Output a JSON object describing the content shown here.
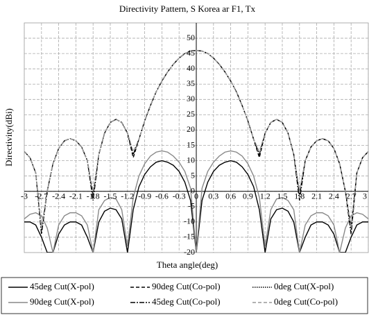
{
  "chart_data": {
    "type": "line",
    "title": "Directivity Pattern, S Korea ar F1, Tx",
    "x_label": "Theta angle(deg)",
    "y_label": "Directivity(dBi)",
    "x": [
      -3,
      -2.9,
      -2.8,
      -2.7,
      -2.6,
      -2.5,
      -2.4,
      -2.3,
      -2.2,
      -2.1,
      -2,
      -1.9,
      -1.8,
      -1.7,
      -1.6,
      -1.5,
      -1.4,
      -1.3,
      -1.2,
      -1.1,
      -1,
      -0.9,
      -0.8,
      -0.7,
      -0.6,
      -0.5,
      -0.4,
      -0.3,
      -0.2,
      -0.1,
      0,
      0.1,
      0.2,
      0.3,
      0.4,
      0.5,
      0.6,
      0.7,
      0.8,
      0.9,
      1,
      1.1,
      1.2,
      1.3,
      1.4,
      1.5,
      1.6,
      1.7,
      1.8,
      1.9,
      2,
      2.1,
      2.2,
      2.3,
      2.4,
      2.5,
      2.6,
      2.7,
      2.8,
      2.9,
      3
    ],
    "series": [
      {
        "name": "45deg Cut(X-pol)",
        "color": "#000000",
        "dash": "solid",
        "values": [
          -10,
          -10,
          -11,
          -15,
          -20,
          -20,
          -14,
          -11,
          -10,
          -10,
          -11,
          -15,
          -20,
          -10,
          -6.5,
          -5.5,
          -6,
          -9,
          -20,
          -6,
          1.5,
          5.5,
          8,
          9.5,
          10,
          9.5,
          8.5,
          6.5,
          3,
          -3,
          -20,
          -3,
          3,
          6.5,
          8.5,
          9.5,
          10,
          9.5,
          8,
          5.5,
          1.5,
          -6,
          -20,
          -9,
          -6,
          -5.5,
          -6.5,
          -10,
          -20,
          -15,
          -11,
          -10,
          -10,
          -11,
          -14,
          -20,
          -20,
          -15,
          -11,
          -10,
          -10
        ]
      },
      {
        "name": "90deg Cut(Co-pol)",
        "color": "#000000",
        "dash": "dashed",
        "values": [
          13,
          11,
          6,
          -12,
          0,
          9,
          14,
          16.5,
          17.2,
          16.5,
          14.5,
          10,
          -1,
          12,
          19,
          22.5,
          23.5,
          22.5,
          19,
          11,
          17,
          23,
          28,
          32.5,
          36,
          39,
          41.5,
          43.5,
          45,
          45.8,
          46,
          45.8,
          45,
          43.5,
          41.5,
          39,
          36,
          32.5,
          28,
          23,
          17,
          11,
          19,
          22.5,
          23.5,
          22.5,
          19,
          12,
          -1,
          10,
          14.5,
          16.5,
          17.2,
          16.5,
          14,
          9,
          0,
          -12,
          6,
          11,
          13
        ]
      },
      {
        "name": "0deg Cut(X-pol)",
        "color": "#000000",
        "dash": "dotted",
        "values": [
          null,
          null,
          null,
          null,
          null,
          null,
          null,
          null,
          null,
          null,
          null,
          null,
          null,
          null,
          null,
          null,
          null,
          null,
          null,
          null,
          null,
          null,
          null,
          null,
          null,
          null,
          null,
          null,
          null,
          null,
          null,
          null,
          null,
          null,
          null,
          null,
          null,
          null,
          null,
          null,
          null,
          null,
          null,
          null,
          null,
          null,
          null,
          null,
          null,
          null,
          null,
          null,
          null,
          null,
          null,
          null,
          null,
          null,
          null,
          null,
          null
        ]
      },
      {
        "name": "90deg Cut(X-pol)",
        "color": "#888888",
        "dash": "solid",
        "values": [
          -9,
          -7.5,
          -7,
          -8,
          -12,
          -20,
          -11,
          -8,
          -7,
          -7,
          -8,
          -11,
          -20,
          -6,
          -3,
          -2,
          -2.5,
          -6,
          -18,
          -2,
          5,
          9,
          11.5,
          12.8,
          13.2,
          12.8,
          11.5,
          9.5,
          6.5,
          1,
          -20,
          1,
          6.5,
          9.5,
          11.5,
          12.8,
          13.2,
          12.8,
          11.5,
          9,
          5,
          -2,
          -18,
          -6,
          -2.5,
          -2,
          -3,
          -6,
          -20,
          -11,
          -8,
          -7,
          -7,
          -8,
          -11,
          -20,
          -12,
          -8,
          -7,
          -7.5,
          -9
        ]
      },
      {
        "name": "45deg Cut(Co-pol)",
        "color": "#000000",
        "dash": "dashdot",
        "values": [
          13,
          11,
          6,
          -14,
          0,
          9,
          14,
          16.5,
          17.2,
          16.5,
          14.5,
          10,
          -3,
          12,
          19,
          22.5,
          23.5,
          22.5,
          19,
          12,
          17,
          23,
          28,
          32.5,
          36,
          39,
          41.5,
          43.5,
          45,
          45.8,
          46,
          45.8,
          45,
          43.5,
          41.5,
          39,
          36,
          32.5,
          28,
          23,
          17,
          12,
          19,
          22.5,
          23.5,
          22.5,
          19,
          12,
          -3,
          10,
          14.5,
          16.5,
          17.2,
          16.5,
          14,
          9,
          0,
          -14,
          6,
          11,
          13
        ]
      },
      {
        "name": "0deg Cut(Co-pol)",
        "color": "#999999",
        "dash": "dashed",
        "values": [
          13,
          11,
          6,
          -12,
          0,
          9,
          14,
          16.5,
          17.2,
          16.5,
          14.5,
          10,
          0,
          12,
          19,
          22.5,
          23.5,
          22.5,
          19,
          13,
          17,
          23,
          28,
          32.5,
          36,
          39,
          41.5,
          43.5,
          45,
          45.8,
          46,
          45.8,
          45,
          43.5,
          41.5,
          39,
          36,
          32.5,
          28,
          23,
          17,
          13,
          19,
          22.5,
          23.5,
          22.5,
          19,
          12,
          0,
          10,
          14.5,
          16.5,
          17.2,
          16.5,
          14,
          9,
          0,
          -12,
          6,
          11,
          13
        ]
      }
    ],
    "xlim": [
      -3,
      3
    ],
    "xticks": [
      -3,
      -2.7,
      -2.4,
      -2.1,
      -1.8,
      -1.5,
      -1.2,
      -0.9,
      -0.6,
      -0.3,
      0,
      0.3,
      0.6,
      0.9,
      1.2,
      1.5,
      1.8,
      2.1,
      2.4,
      2.7,
      3
    ],
    "ylim": [
      -20,
      55
    ],
    "yticks": [
      -20,
      -15,
      -10,
      -5,
      0,
      5,
      10,
      15,
      20,
      25,
      30,
      35,
      40,
      45,
      50
    ],
    "grid": true,
    "legend": "bottom"
  }
}
